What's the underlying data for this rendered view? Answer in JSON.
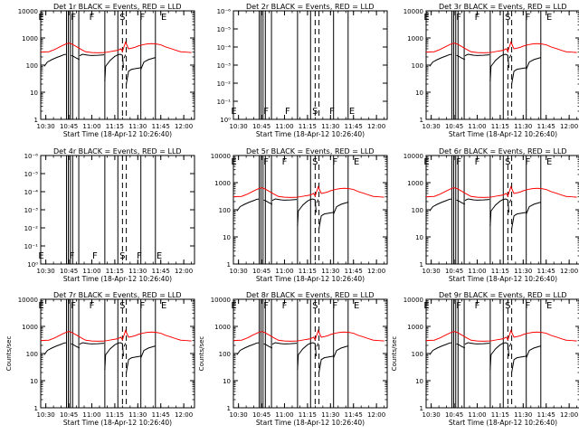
{
  "colors": {
    "events": "#000000",
    "lld": "#ff0000",
    "axis": "#000000",
    "background": "#ffffff"
  },
  "x_tick_labels": [
    "10:30",
    "10:45",
    "11:00",
    "11:15",
    "11:30",
    "11:45",
    "12:00"
  ],
  "xlabel": "Start Time (18-Apr-12 10:26:40)",
  "ylabel": "Counts/sec",
  "chart_data": [
    {
      "type": "line",
      "title": "Det 1r BLACK = Events, RED = LLD",
      "show_ylabel": false,
      "yscale": "log",
      "ylim": [
        1,
        10000
      ],
      "y_tick_labels": [
        "1",
        "10",
        "100",
        "1000",
        "10000"
      ],
      "series": [
        {
          "name": "Events",
          "profile": "events"
        },
        {
          "name": "LLD",
          "profile": "lld"
        }
      ],
      "region_labels": [
        {
          "text": "E",
          "t": "10:27"
        },
        {
          "text": "F",
          "t": "10:48"
        },
        {
          "text": "F",
          "t": "11:00"
        },
        {
          "text": "S",
          "t": "11:20"
        },
        {
          "text": "F",
          "t": "11:33"
        },
        {
          "text": "E",
          "t": "11:47"
        }
      ],
      "region_label_pos": "top"
    },
    {
      "type": "line",
      "title": "Det 2r BLACK = Events, RED = LLD",
      "show_ylabel": false,
      "yscale": "log",
      "ylim": [
        1,
        10000
      ],
      "y_tick_labels": [
        "10⁰",
        "10⁻¹",
        "10⁻²",
        "10⁻³",
        "10⁻⁴",
        "10⁻⁵",
        "10⁻⁶"
      ],
      "series": [],
      "region_labels": [
        {
          "text": "E",
          "t": "10:27"
        },
        {
          "text": "F",
          "t": "10:48"
        },
        {
          "text": "F",
          "t": "11:02"
        },
        {
          "text": "S",
          "t": "11:20"
        },
        {
          "text": "F",
          "t": "11:31"
        },
        {
          "text": "E",
          "t": "11:44"
        }
      ],
      "region_label_pos": "bottom"
    },
    {
      "type": "line",
      "title": "Det 3r BLACK = Events, RED = LLD",
      "show_ylabel": false,
      "yscale": "log",
      "ylim": [
        1,
        10000
      ],
      "y_tick_labels": [
        "1",
        "10",
        "100",
        "1000",
        "10000"
      ],
      "series": [
        {
          "name": "Events",
          "profile": "events"
        },
        {
          "name": "LLD",
          "profile": "lld"
        }
      ],
      "region_labels": [
        {
          "text": "E",
          "t": "10:27"
        },
        {
          "text": "F",
          "t": "10:48"
        },
        {
          "text": "F",
          "t": "11:00"
        },
        {
          "text": "S",
          "t": "11:20"
        },
        {
          "text": "F",
          "t": "11:33"
        },
        {
          "text": "E",
          "t": "11:47"
        }
      ],
      "region_label_pos": "top"
    },
    {
      "type": "line",
      "title": "Det 4r BLACK = Events, RED = LLD",
      "show_ylabel": false,
      "yscale": "log",
      "ylim": [
        1,
        10000
      ],
      "y_tick_labels": [
        "10⁰",
        "10⁻¹",
        "10⁻²",
        "10⁻³",
        "10⁻⁴",
        "10⁻⁵",
        "10⁻⁶"
      ],
      "series": [],
      "region_labels": [
        {
          "text": "E",
          "t": "10:27"
        },
        {
          "text": "F",
          "t": "10:47"
        },
        {
          "text": "F",
          "t": "11:02"
        },
        {
          "text": "S",
          "t": "11:20"
        },
        {
          "text": "F",
          "t": "11:31"
        },
        {
          "text": "E",
          "t": "11:44"
        }
      ],
      "region_label_pos": "bottom"
    },
    {
      "type": "line",
      "title": "Det 5r BLACK = Events, RED = LLD",
      "show_ylabel": false,
      "yscale": "log",
      "ylim": [
        1,
        10000
      ],
      "y_tick_labels": [
        "1",
        "10",
        "100",
        "1000",
        "10000"
      ],
      "series": [
        {
          "name": "Events",
          "profile": "events"
        },
        {
          "name": "LLD",
          "profile": "lld"
        }
      ],
      "region_labels": [
        {
          "text": "E",
          "t": "10:27"
        },
        {
          "text": "F",
          "t": "10:48"
        },
        {
          "text": "F",
          "t": "11:00"
        },
        {
          "text": "S",
          "t": "11:20"
        },
        {
          "text": "F",
          "t": "11:33"
        },
        {
          "text": "E",
          "t": "11:47"
        }
      ],
      "region_label_pos": "top"
    },
    {
      "type": "line",
      "title": "Det 6r BLACK = Events, RED = LLD",
      "show_ylabel": false,
      "yscale": "log",
      "ylim": [
        1,
        10000
      ],
      "y_tick_labels": [
        "1",
        "10",
        "100",
        "1000",
        "10000"
      ],
      "series": [
        {
          "name": "Events",
          "profile": "events"
        },
        {
          "name": "LLD",
          "profile": "lld"
        }
      ],
      "region_labels": [
        {
          "text": "E",
          "t": "10:27"
        },
        {
          "text": "F",
          "t": "10:48"
        },
        {
          "text": "F",
          "t": "11:00"
        },
        {
          "text": "S",
          "t": "11:20"
        },
        {
          "text": "F",
          "t": "11:33"
        },
        {
          "text": "E",
          "t": "11:47"
        }
      ],
      "region_label_pos": "top"
    },
    {
      "type": "line",
      "title": "Det 7r BLACK = Events, RED = LLD",
      "show_ylabel": true,
      "yscale": "log",
      "ylim": [
        1,
        10000
      ],
      "y_tick_labels": [
        "1",
        "10",
        "100",
        "1000",
        "10000"
      ],
      "series": [
        {
          "name": "Events",
          "profile": "events"
        },
        {
          "name": "LLD",
          "profile": "lld"
        }
      ],
      "region_labels": [
        {
          "text": "E",
          "t": "10:27"
        },
        {
          "text": "F",
          "t": "10:48"
        },
        {
          "text": "F",
          "t": "11:00"
        },
        {
          "text": "S",
          "t": "11:20"
        },
        {
          "text": "F",
          "t": "11:33"
        },
        {
          "text": "E",
          "t": "11:47"
        }
      ],
      "region_label_pos": "top"
    },
    {
      "type": "line",
      "title": "Det 8r BLACK = Events, RED = LLD",
      "show_ylabel": true,
      "yscale": "log",
      "ylim": [
        1,
        10000
      ],
      "y_tick_labels": [
        "1",
        "10",
        "100",
        "1000",
        "10000"
      ],
      "series": [
        {
          "name": "Events",
          "profile": "events"
        },
        {
          "name": "LLD",
          "profile": "lld"
        }
      ],
      "region_labels": [
        {
          "text": "E",
          "t": "10:27"
        },
        {
          "text": "F",
          "t": "10:48"
        },
        {
          "text": "F",
          "t": "11:00"
        },
        {
          "text": "S",
          "t": "11:20"
        },
        {
          "text": "F",
          "t": "11:33"
        },
        {
          "text": "E",
          "t": "11:47"
        }
      ],
      "region_label_pos": "top"
    },
    {
      "type": "line",
      "title": "Det 9r BLACK = Events, RED = LLD",
      "show_ylabel": true,
      "yscale": "log",
      "ylim": [
        1,
        10000
      ],
      "y_tick_labels": [
        "1",
        "10",
        "100",
        "1000",
        "10000"
      ],
      "series": [
        {
          "name": "Events",
          "profile": "events"
        },
        {
          "name": "LLD",
          "profile": "lld"
        }
      ],
      "region_labels": [
        {
          "text": "E",
          "t": "10:27"
        },
        {
          "text": "F",
          "t": "10:48"
        },
        {
          "text": "F",
          "t": "11:00"
        },
        {
          "text": "S",
          "t": "11:20"
        },
        {
          "text": "F",
          "t": "11:33"
        },
        {
          "text": "E",
          "t": "11:47"
        }
      ],
      "region_label_pos": "top"
    }
  ],
  "time_axis": {
    "xlim": [
      "10:26:40",
      "12:07:00"
    ]
  },
  "vertical_markers": {
    "solid": [
      "10:43:30",
      "10:44:40",
      "10:46:00",
      "10:47:30",
      "10:51:30",
      "11:08:30",
      "11:17:00",
      "11:32:00",
      "11:41:30"
    ],
    "dashed": [
      "11:20:00",
      "11:22:30"
    ]
  },
  "profiles": {
    "lld": {
      "t": [
        "10:26:40",
        "10:32",
        "10:36",
        "10:40",
        "10:43",
        "10:45",
        "10:47",
        "10:50",
        "10:53",
        "10:56",
        "11:00",
        "11:04",
        "11:08",
        "11:10",
        "11:14",
        "11:17",
        "11:19",
        "11:20",
        "11:22",
        "11:24",
        "11:26",
        "11:28",
        "11:30",
        "11:33",
        "11:36",
        "11:39",
        "11:42",
        "11:45",
        "11:48",
        "11:52",
        "11:55",
        "11:58",
        "12:02",
        "12:05"
      ],
      "v": [
        300,
        310,
        380,
        500,
        600,
        650,
        600,
        480,
        380,
        310,
        290,
        285,
        290,
        300,
        330,
        350,
        400,
        320,
        700,
        400,
        420,
        450,
        500,
        560,
        600,
        620,
        600,
        560,
        470,
        400,
        350,
        310,
        300,
        290
      ]
    },
    "events": {
      "segments": [
        {
          "t": [
            "10:29",
            "10:31",
            "10:34",
            "10:37",
            "10:40",
            "10:42",
            "10:43:30"
          ],
          "v": [
            90,
            130,
            160,
            190,
            220,
            245,
            250
          ]
        },
        {
          "t": [
            "10:46:30",
            "10:48",
            "10:50",
            "10:52"
          ],
          "v": [
            230,
            210,
            180,
            160
          ]
        },
        {
          "t": [
            "10:52",
            "10:54",
            "10:56",
            "10:58",
            "11:00",
            "11:04",
            "11:08"
          ],
          "v": [
            220,
            250,
            240,
            230,
            225,
            230,
            240
          ]
        },
        {
          "t": [
            "11:08:30",
            "11:09",
            "11:12",
            "11:15",
            "11:17"
          ],
          "v": [
            25,
            90,
            150,
            210,
            240
          ]
        },
        {
          "t": [
            "11:17",
            "11:18:30",
            "11:20",
            "11:20:40"
          ],
          "v": [
            240,
            250,
            230,
            80
          ]
        },
        {
          "t": [
            "11:21",
            "11:22"
          ],
          "v": [
            180,
            240
          ]
        },
        {
          "t": [
            "11:22:30",
            "11:24",
            "11:26",
            "11:29",
            "11:32"
          ],
          "v": [
            20,
            60,
            70,
            75,
            80
          ]
        },
        {
          "t": [
            "11:32",
            "11:34",
            "11:37",
            "11:40",
            "11:41:30"
          ],
          "v": [
            70,
            130,
            160,
            180,
            190
          ]
        }
      ]
    }
  }
}
